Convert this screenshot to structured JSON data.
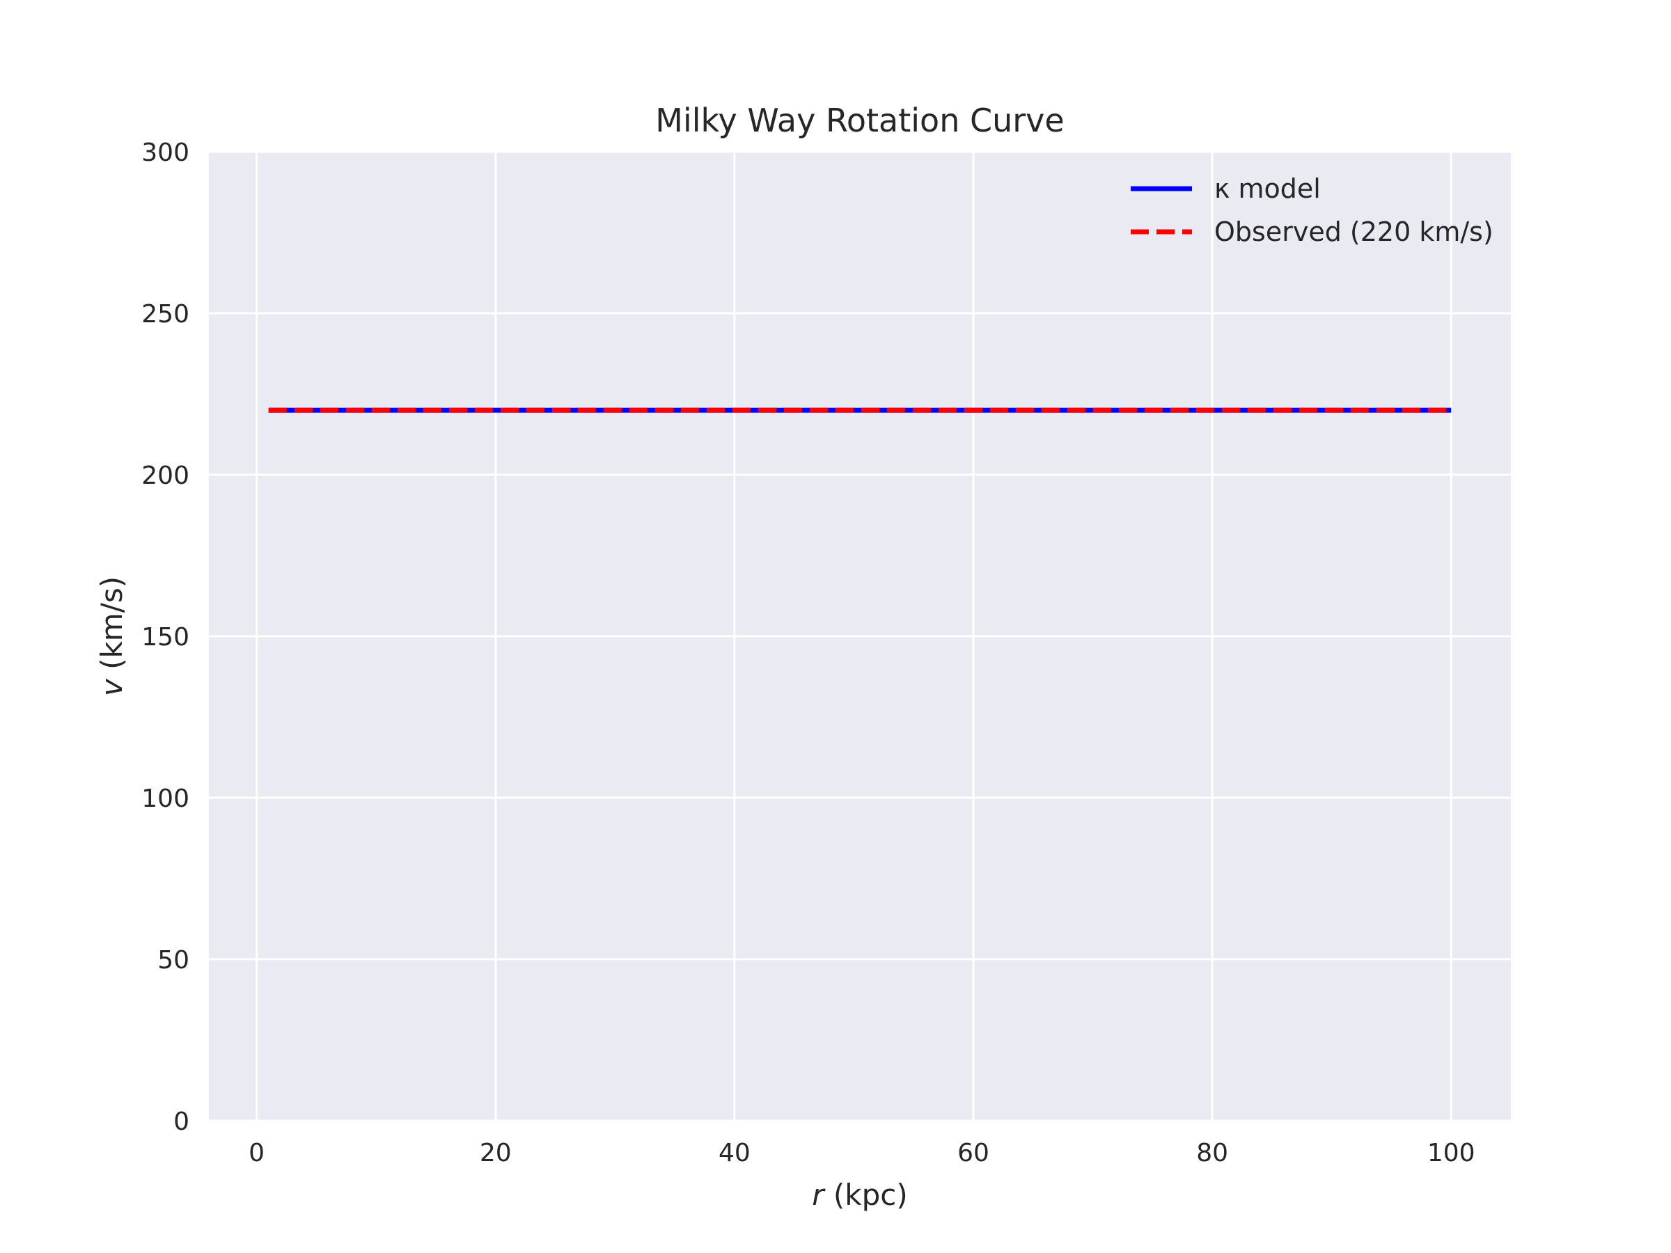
{
  "chart_data": {
    "type": "line",
    "title": "Milky Way Rotation Curve",
    "xlabel": {
      "var": "r",
      "unit": " (kpc)"
    },
    "ylabel": {
      "var": "v",
      "unit": " (km/s)"
    },
    "xlim": [
      -4,
      105
    ],
    "ylim": [
      0,
      300
    ],
    "xticks": [
      0,
      20,
      40,
      60,
      80,
      100
    ],
    "yticks": [
      0,
      50,
      100,
      150,
      200,
      250,
      300
    ],
    "grid": true,
    "legend_position": "top-right",
    "series": [
      {
        "name": "κ model",
        "color": "#0000ff",
        "style": "solid",
        "x": [
          1,
          100
        ],
        "y": [
          220,
          220
        ]
      },
      {
        "name": "Observed (220 km/s)",
        "color": "#ff0000",
        "style": "dashed",
        "x": [
          1,
          100
        ],
        "y": [
          220,
          220
        ]
      }
    ],
    "colors": {
      "plot_background": "#eaeaf2",
      "grid": "#ffffff"
    }
  }
}
